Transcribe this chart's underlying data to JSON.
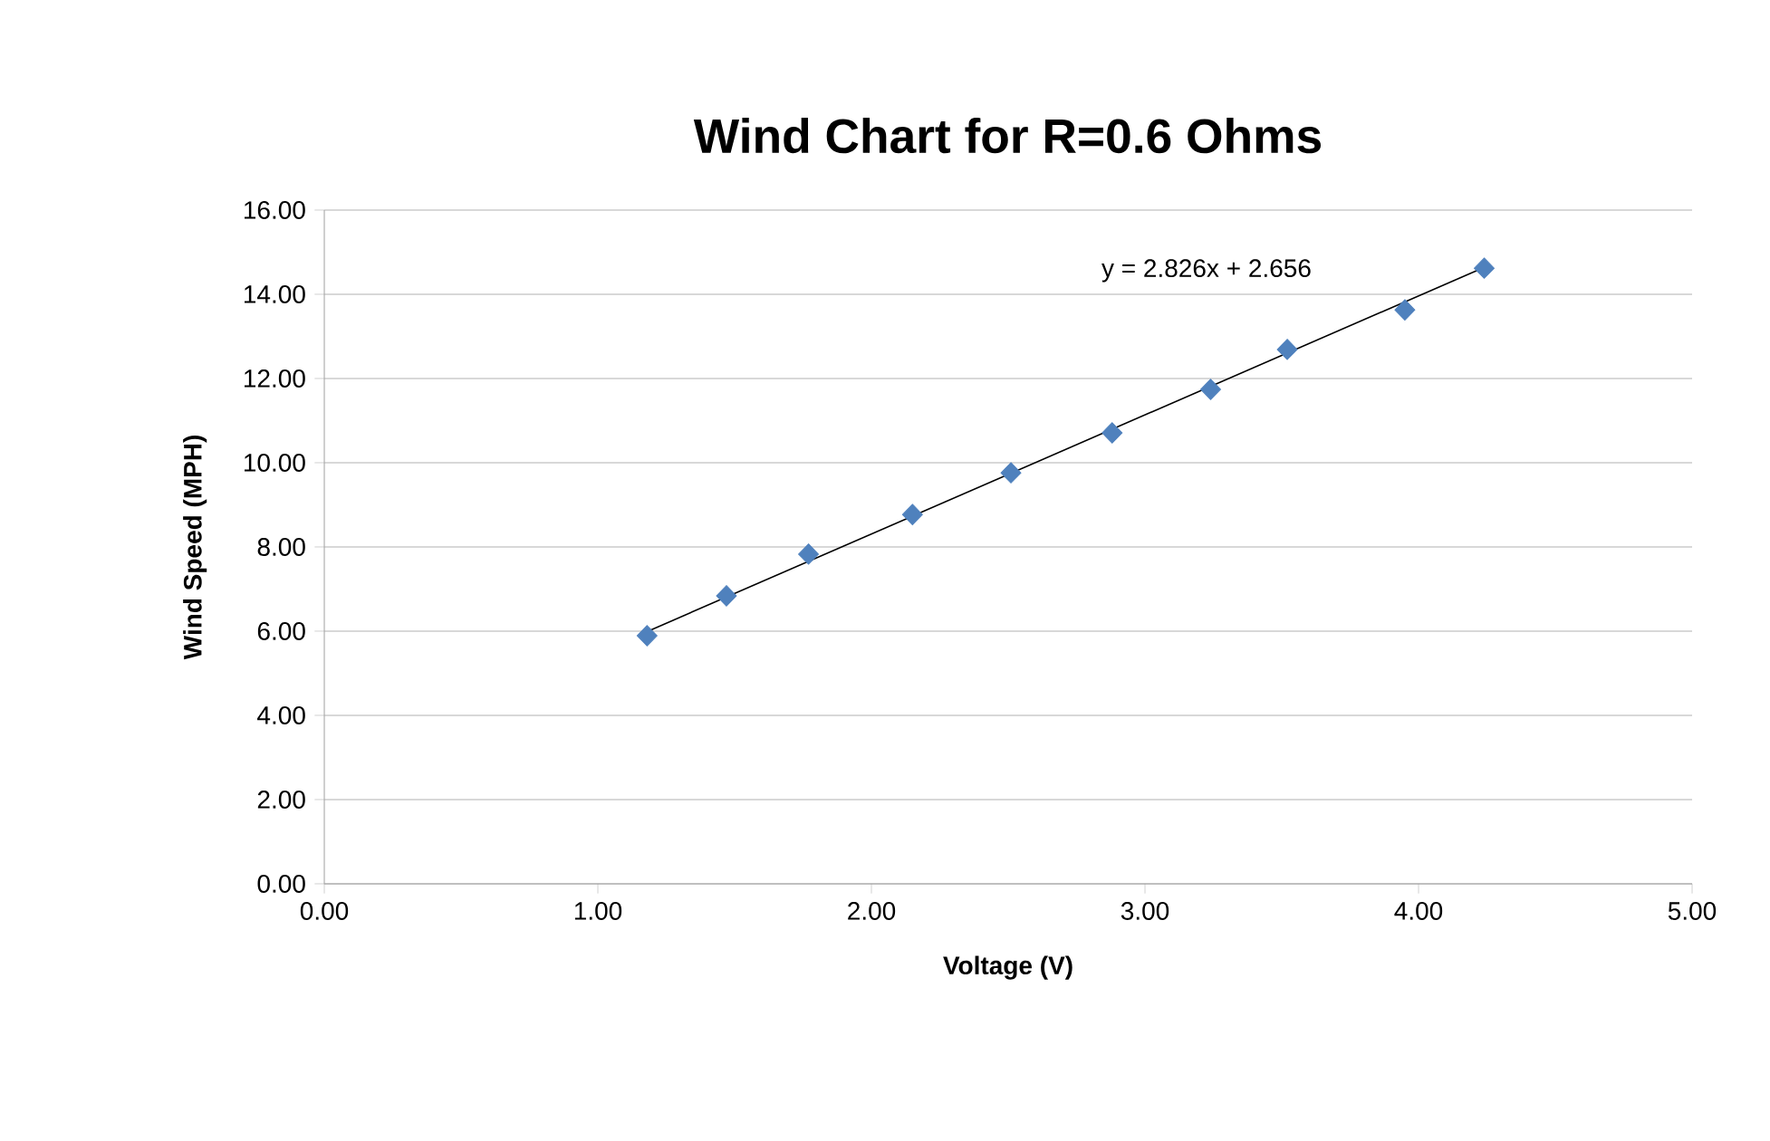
{
  "chart_data": {
    "type": "scatter",
    "title": "Wind Chart for R=0.6 Ohms",
    "xlabel": "Voltage (V)",
    "ylabel": "Wind Speed (MPH)",
    "series": [
      {
        "color": "#4f81bd",
        "marker": "diamond",
        "x": [
          1.18,
          1.47,
          1.77,
          2.15,
          2.51,
          2.88,
          3.24,
          3.52,
          3.95,
          4.24
        ],
        "values": [
          5.89,
          6.84,
          7.83,
          8.77,
          9.76,
          10.71,
          11.74,
          12.69,
          13.63,
          14.62
        ]
      },
      {
        "type": "line",
        "color": "#000000",
        "marker": "none",
        "line_style": "solid",
        "x": [
          1.18,
          4.24
        ],
        "values": [
          5.99,
          14.64
        ]
      }
    ],
    "annotations": [
      "y = 2.826x + 2.656"
    ],
    "xlim": [
      0,
      5
    ],
    "ylim": [
      0,
      16
    ],
    "xticks": [
      {
        "value": 0,
        "label": "0.00"
      },
      {
        "value": 1,
        "label": "1.00"
      },
      {
        "value": 2,
        "label": "2.00"
      },
      {
        "value": 3,
        "label": "3.00"
      },
      {
        "value": 4,
        "label": "4.00"
      },
      {
        "value": 5,
        "label": "5.00"
      }
    ],
    "yticks": [
      {
        "value": 0,
        "label": "0.00"
      },
      {
        "value": 2,
        "label": "2.00"
      },
      {
        "value": 4,
        "label": "4.00"
      },
      {
        "value": 6,
        "label": "6.00"
      },
      {
        "value": 8,
        "label": "8.00"
      },
      {
        "value": 10,
        "label": "10.00"
      },
      {
        "value": 12,
        "label": "12.00"
      },
      {
        "value": 14,
        "label": "14.00"
      },
      {
        "value": 16,
        "label": "16.00"
      }
    ],
    "grid": "y"
  }
}
